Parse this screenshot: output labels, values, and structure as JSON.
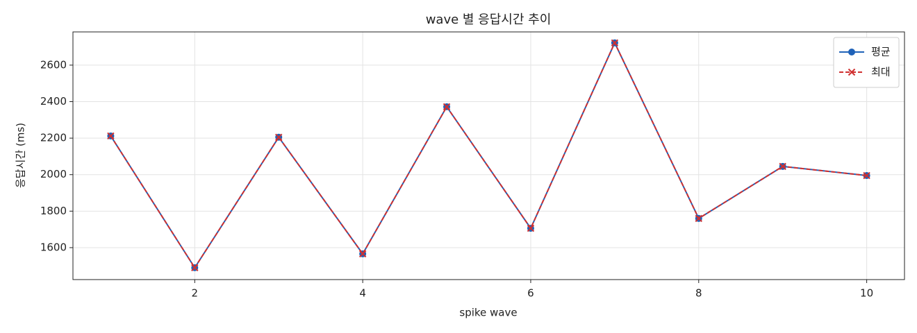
{
  "chart_data": {
    "type": "line",
    "title": "wave 별 응답시간 추이",
    "xlabel": "spike wave",
    "ylabel": "응답시간 (ms)",
    "x": [
      1,
      2,
      3,
      4,
      5,
      6,
      7,
      8,
      9,
      10
    ],
    "series": [
      {
        "name": "평균",
        "color": "#1f62b8",
        "marker": "circle",
        "dash": false,
        "values": [
          2212,
          1490,
          2205,
          1566,
          2372,
          1706,
          2722,
          1760,
          2045,
          1995
        ]
      },
      {
        "name": "최대",
        "color": "#d03030",
        "marker": "x",
        "dash": true,
        "values": [
          2212,
          1490,
          2205,
          1566,
          2372,
          1706,
          2722,
          1760,
          2045,
          1995
        ]
      }
    ],
    "xlim": [
      0.55,
      10.45
    ],
    "ylim": [
      1425,
      2782
    ],
    "xticks": [
      2,
      4,
      6,
      8,
      10
    ],
    "yticks": [
      1600,
      1800,
      2000,
      2200,
      2400,
      2600
    ],
    "grid": true,
    "legend": "upper right"
  }
}
